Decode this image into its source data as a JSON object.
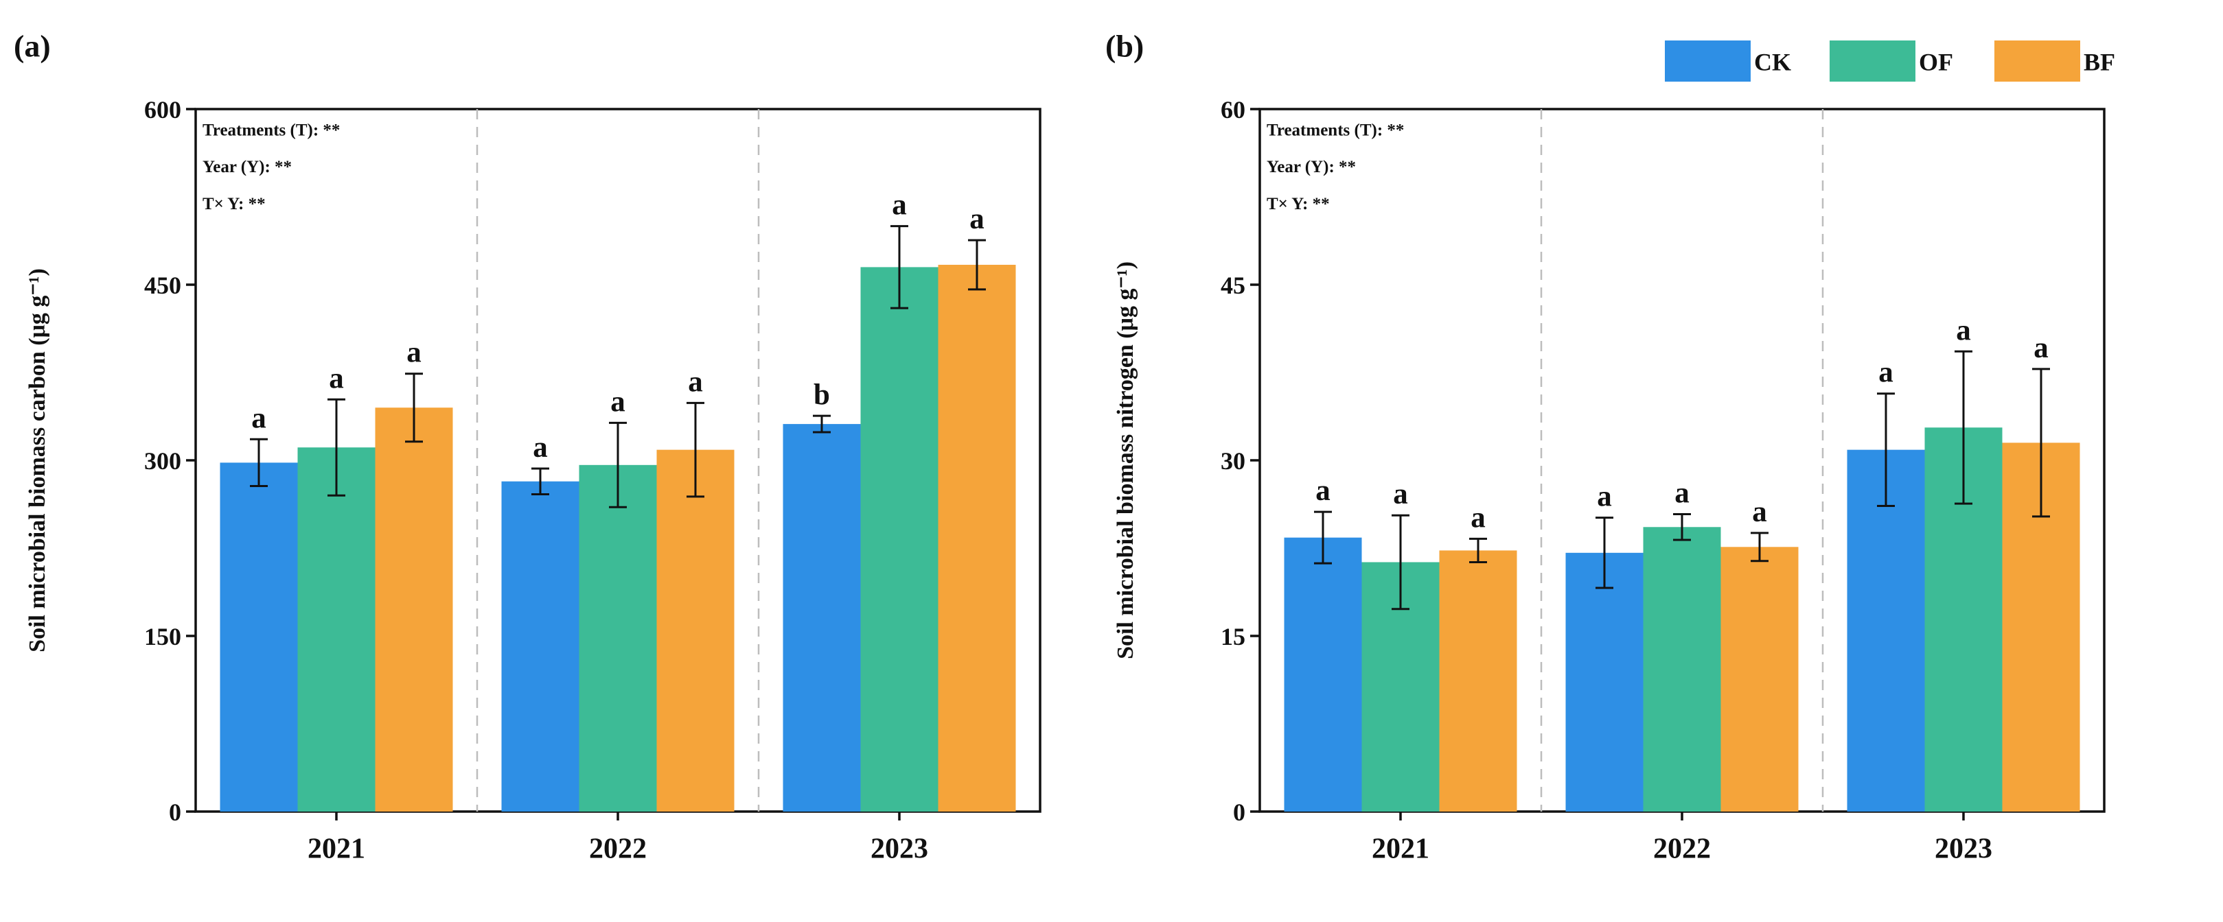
{
  "colors": {
    "CK": "#2e8fe5",
    "OF": "#3dbb96",
    "BF": "#f5a43a"
  },
  "legend": [
    {
      "key": "CK",
      "label": "CK"
    },
    {
      "key": "OF",
      "label": "OF"
    },
    {
      "key": "BF",
      "label": "BF"
    }
  ],
  "chart_data": [
    {
      "type": "bar",
      "panel_label": "(a)",
      "ylabel": "Soil microbial biomass carbon (μg g⁻¹)",
      "ylim": [
        0,
        600
      ],
      "yticks": [
        "0",
        "150",
        "300",
        "450",
        "600"
      ],
      "categories": [
        "2021",
        "2022",
        "2023"
      ],
      "stats": [
        "Treatments (T): **",
        "Year (Y): **",
        "T× Y: **"
      ],
      "series": [
        {
          "name": "CK",
          "values": [
            298,
            282,
            331
          ],
          "errors": [
            20,
            11,
            7
          ],
          "letters": [
            "a",
            "a",
            "b"
          ]
        },
        {
          "name": "OF",
          "values": [
            311,
            296,
            465
          ],
          "errors": [
            41,
            36,
            35
          ],
          "letters": [
            "a",
            "a",
            "a"
          ]
        },
        {
          "name": "BF",
          "values": [
            345,
            309,
            467
          ],
          "errors": [
            29,
            40,
            21
          ],
          "letters": [
            "a",
            "a",
            "a"
          ]
        }
      ],
      "legend_position": "none"
    },
    {
      "type": "bar",
      "panel_label": "(b)",
      "ylabel": "Soil microbial biomass nitrogen (μg g⁻¹)",
      "ylim": [
        0,
        60
      ],
      "yticks": [
        "0",
        "15",
        "30",
        "45",
        "60"
      ],
      "categories": [
        "2021",
        "2022",
        "2023"
      ],
      "stats": [
        "Treatments (T): **",
        "Year (Y): **",
        "T× Y: **"
      ],
      "series": [
        {
          "name": "CK",
          "values": [
            23.4,
            22.1,
            30.9
          ],
          "errors": [
            2.2,
            3.0,
            4.8
          ],
          "letters": [
            "a",
            "a",
            "a"
          ]
        },
        {
          "name": "OF",
          "values": [
            21.3,
            24.3,
            32.8
          ],
          "errors": [
            4.0,
            1.1,
            6.5
          ],
          "letters": [
            "a",
            "a",
            "a"
          ]
        },
        {
          "name": "BF",
          "values": [
            22.3,
            22.6,
            31.5
          ],
          "errors": [
            1.0,
            1.2,
            6.3
          ],
          "letters": [
            "a",
            "a",
            "a"
          ]
        }
      ],
      "legend_position": "top-right"
    }
  ]
}
